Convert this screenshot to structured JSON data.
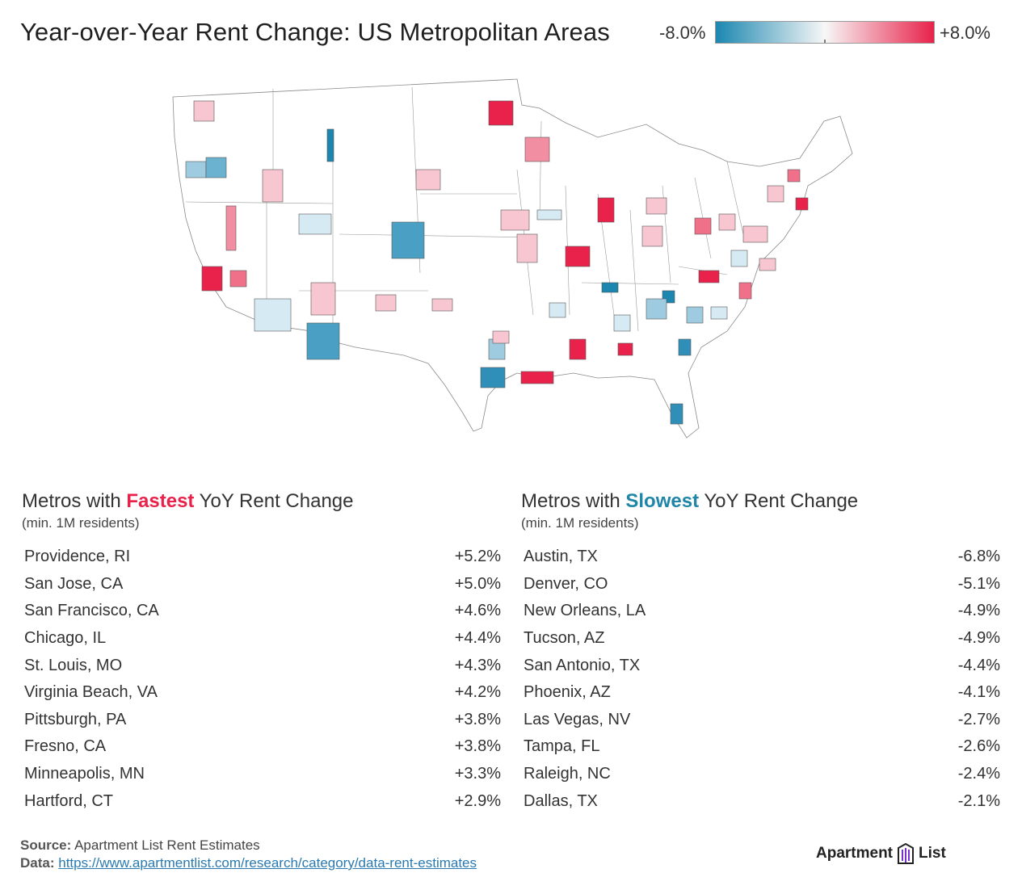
{
  "title": "Year-over-Year Rent Change: US Metropolitan Areas",
  "legend": {
    "min_label": "-8.0%",
    "max_label": "+8.0%",
    "low_color": "#1b87b0",
    "mid_color": "#f7f7f7",
    "high_color": "#e8224a"
  },
  "fastest": {
    "title_prefix": "Metros with",
    "title_highlight": "Fastest",
    "title_suffix": "YoY Rent Change",
    "subtitle": "(min. 1M residents)",
    "rows": [
      {
        "metro": "Providence, RI",
        "value": "+5.2%"
      },
      {
        "metro": "San Jose, CA",
        "value": "+5.0%"
      },
      {
        "metro": "San Francisco, CA",
        "value": "+4.6%"
      },
      {
        "metro": "Chicago, IL",
        "value": "+4.4%"
      },
      {
        "metro": "St. Louis, MO",
        "value": "+4.3%"
      },
      {
        "metro": "Virginia Beach, VA",
        "value": "+4.2%"
      },
      {
        "metro": "Pittsburgh, PA",
        "value": "+3.8%"
      },
      {
        "metro": "Fresno, CA",
        "value": "+3.8%"
      },
      {
        "metro": "Minneapolis, MN",
        "value": "+3.3%"
      },
      {
        "metro": "Hartford, CT",
        "value": "+2.9%"
      }
    ]
  },
  "slowest": {
    "title_prefix": "Metros with",
    "title_highlight": "Slowest",
    "title_suffix": "YoY Rent Change",
    "subtitle": "(min. 1M residents)",
    "rows": [
      {
        "metro": "Austin, TX",
        "value": "-6.8%"
      },
      {
        "metro": "Denver, CO",
        "value": "-5.1%"
      },
      {
        "metro": "New Orleans, LA",
        "value": "-4.9%"
      },
      {
        "metro": "Tucson, AZ",
        "value": "-4.9%"
      },
      {
        "metro": "San Antonio, TX",
        "value": "-4.4%"
      },
      {
        "metro": "Phoenix, AZ",
        "value": "-4.1%"
      },
      {
        "metro": "Las Vegas, NV",
        "value": "-2.7%"
      },
      {
        "metro": "Tampa, FL",
        "value": "-2.6%"
      },
      {
        "metro": "Raleigh, NC",
        "value": "-2.4%"
      },
      {
        "metro": "Dallas, TX",
        "value": "-2.1%"
      }
    ]
  },
  "footer": {
    "source_label": "Source:",
    "source_text": "Apartment List Rent Estimates",
    "data_label": "Data:",
    "data_link": "https://www.apartmentlist.com/research/category/data-rent-estimates"
  },
  "brand": {
    "name_left": "Apartment",
    "name_right": "List",
    "logo_icon": "apartment-list-logo-icon"
  }
}
